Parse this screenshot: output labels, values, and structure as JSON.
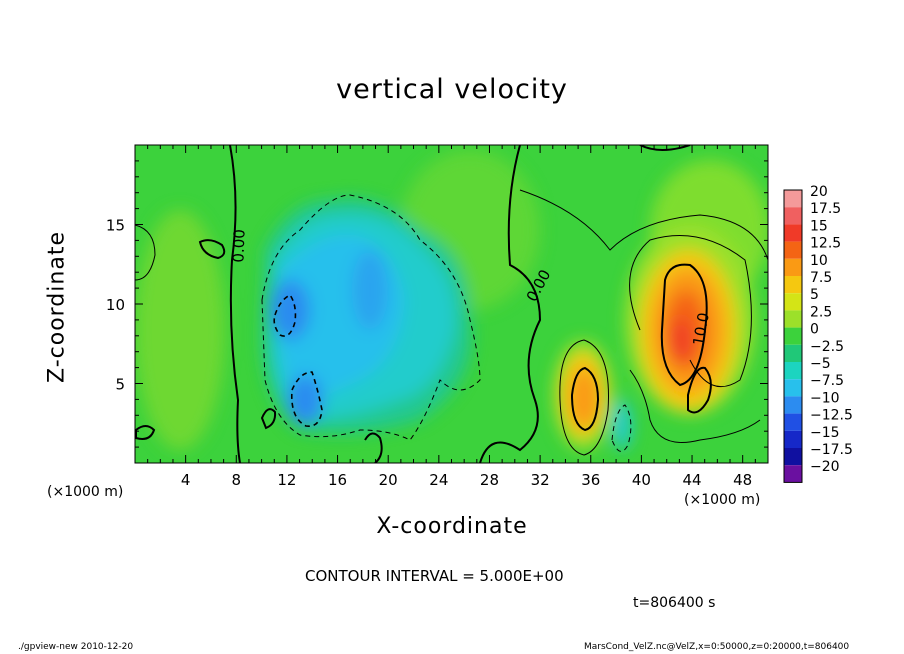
{
  "chart_data": {
    "type": "heatmap",
    "title": "vertical velocity",
    "xlabel": "X-coordinate",
    "ylabel": "Z-coordinate",
    "x_unit_left": "(×1000 m)",
    "x_unit_right": "(×1000 m)",
    "xlim": [
      0,
      50
    ],
    "ylim": [
      0,
      20
    ],
    "x_ticks": [
      4,
      8,
      12,
      16,
      20,
      24,
      28,
      32,
      36,
      40,
      44,
      48
    ],
    "y_ticks": [
      5,
      10,
      15
    ],
    "colorbar": {
      "levels": [
        20,
        17.5,
        15,
        12.5,
        10,
        7.5,
        5,
        2.5,
        0,
        -2.5,
        -5,
        -7.5,
        -10,
        -12.5,
        -15,
        -17.5,
        -20
      ],
      "labels": [
        "20",
        "17.5",
        "15",
        "12.5",
        "10",
        "7.5",
        "5",
        "2.5",
        "0",
        "−2.5",
        "−5",
        "−7.5",
        "−10",
        "−12.5",
        "−15",
        "−17.5",
        "−20"
      ],
      "colors": [
        "#f49a9a",
        "#f06060",
        "#f03a28",
        "#f46414",
        "#fa9a14",
        "#f5c810",
        "#d4e416",
        "#9ce02a",
        "#3cd23c",
        "#20c878",
        "#1cd4c0",
        "#28c0ec",
        "#2c8cf0",
        "#2050e4",
        "#1628c8",
        "#1010a0",
        "#6a10a0"
      ]
    },
    "contour_labels": [
      "0.00",
      "0.00",
      "10.0"
    ],
    "contour_interval": "CONTOUR INTERVAL = 5.000E+00",
    "time_label": "t=806400  s"
  },
  "footer": {
    "left": "./gpview-new  2010-12-20",
    "right": "MarsCond_VelZ.nc@VelZ,x=0:50000,z=0:20000,t=806400"
  }
}
